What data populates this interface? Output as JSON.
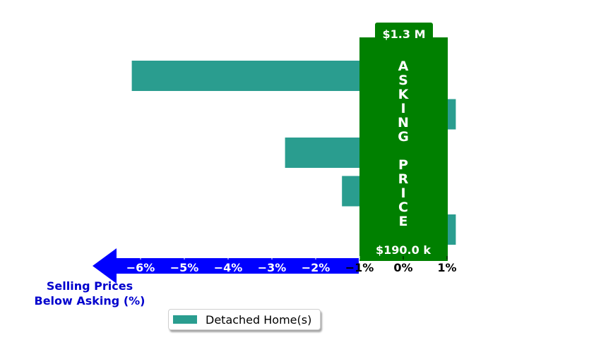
{
  "chart_data": {
    "type": "bar",
    "orientation": "horizontal",
    "series": [
      {
        "name": "Detached Home(s)",
        "values": [
          -6.2,
          1.2,
          -2.7,
          -1.4,
          1.2
        ]
      }
    ],
    "xlim": [
      -7.0,
      1.5
    ],
    "x_ticks": [
      -6,
      -5,
      -4,
      -3,
      -2,
      -1,
      0,
      1
    ],
    "x_tick_labels": [
      "−6%",
      "−5%",
      "−4%",
      "−3%",
      "−2%",
      "−1%",
      "0%",
      "1%"
    ],
    "xlabel": "Selling Prices\nBelow Asking (%)",
    "ylabel": "",
    "title": "",
    "grid": false,
    "legend_position": "bottom-center"
  },
  "annotation": {
    "asking_price_label": "ASKING PRICE",
    "top_price": "$1.3 M",
    "bottom_price": "$190.0 k"
  },
  "colors": {
    "bar": "#2a9d8f",
    "asking_band": "#008000",
    "arrow": "#0000ff",
    "xlabel": "#0000cd"
  }
}
